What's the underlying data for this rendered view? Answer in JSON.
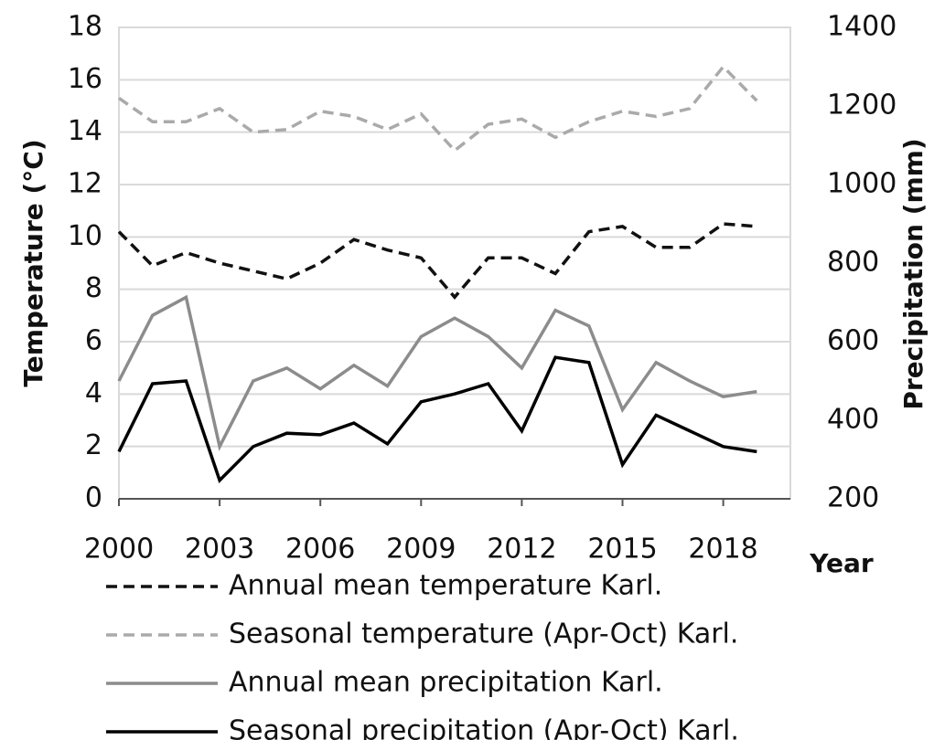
{
  "chart_data": {
    "type": "line",
    "x_label": "Year",
    "y_label": "Temperature (°C)",
    "y2_label": "Precipitation (mm)",
    "x": [
      2000,
      2001,
      2002,
      2003,
      2004,
      2005,
      2006,
      2007,
      2008,
      2009,
      2010,
      2011,
      2012,
      2013,
      2014,
      2015,
      2016,
      2017,
      2018,
      2019
    ],
    "xlim": [
      2000,
      2020
    ],
    "xticks": [
      2000,
      2003,
      2006,
      2009,
      2012,
      2015,
      2018
    ],
    "ylim": [
      0,
      18
    ],
    "yticks": [
      0,
      2,
      4,
      6,
      8,
      10,
      12,
      14,
      16,
      18
    ],
    "y2lim": [
      200,
      1400
    ],
    "y2ticks": [
      200,
      400,
      600,
      800,
      1000,
      1200,
      1400
    ],
    "grid": true,
    "series": [
      {
        "name": "Annual mean temperature Karl.",
        "color": "#111111",
        "dash": true,
        "values": [
          10.2,
          8.9,
          9.4,
          9.0,
          8.7,
          8.4,
          9.0,
          9.9,
          9.5,
          9.2,
          7.7,
          9.2,
          9.2,
          8.6,
          10.2,
          10.4,
          9.6,
          9.6,
          10.5,
          10.4
        ]
      },
      {
        "name": "Seasonal temperature (Apr-Oct) Karl.",
        "color": "#aaaaaa",
        "dash": true,
        "values": [
          15.3,
          14.4,
          14.4,
          14.9,
          14.0,
          14.1,
          14.8,
          14.6,
          14.1,
          14.7,
          13.3,
          14.3,
          14.5,
          13.8,
          14.4,
          14.8,
          14.6,
          14.9,
          16.5,
          15.2
        ]
      },
      {
        "name": "Annual mean precipitation Karl.",
        "color": "#8c8c8c",
        "dash": false,
        "axis": "y2",
        "values": [
          500,
          667,
          713,
          333,
          500,
          533,
          480,
          540,
          487,
          613,
          660,
          613,
          533,
          680,
          640,
          427,
          547,
          500,
          460,
          473
        ]
      },
      {
        "name": "Seasonal precipitation (Apr-Oct) Karl.",
        "color": "#000000",
        "dash": false,
        "axis": "y2",
        "values": [
          320,
          493,
          500,
          247,
          333,
          367,
          363,
          393,
          340,
          447,
          467,
          493,
          373,
          560,
          547,
          287,
          413,
          373,
          333,
          320
        ]
      }
    ]
  }
}
